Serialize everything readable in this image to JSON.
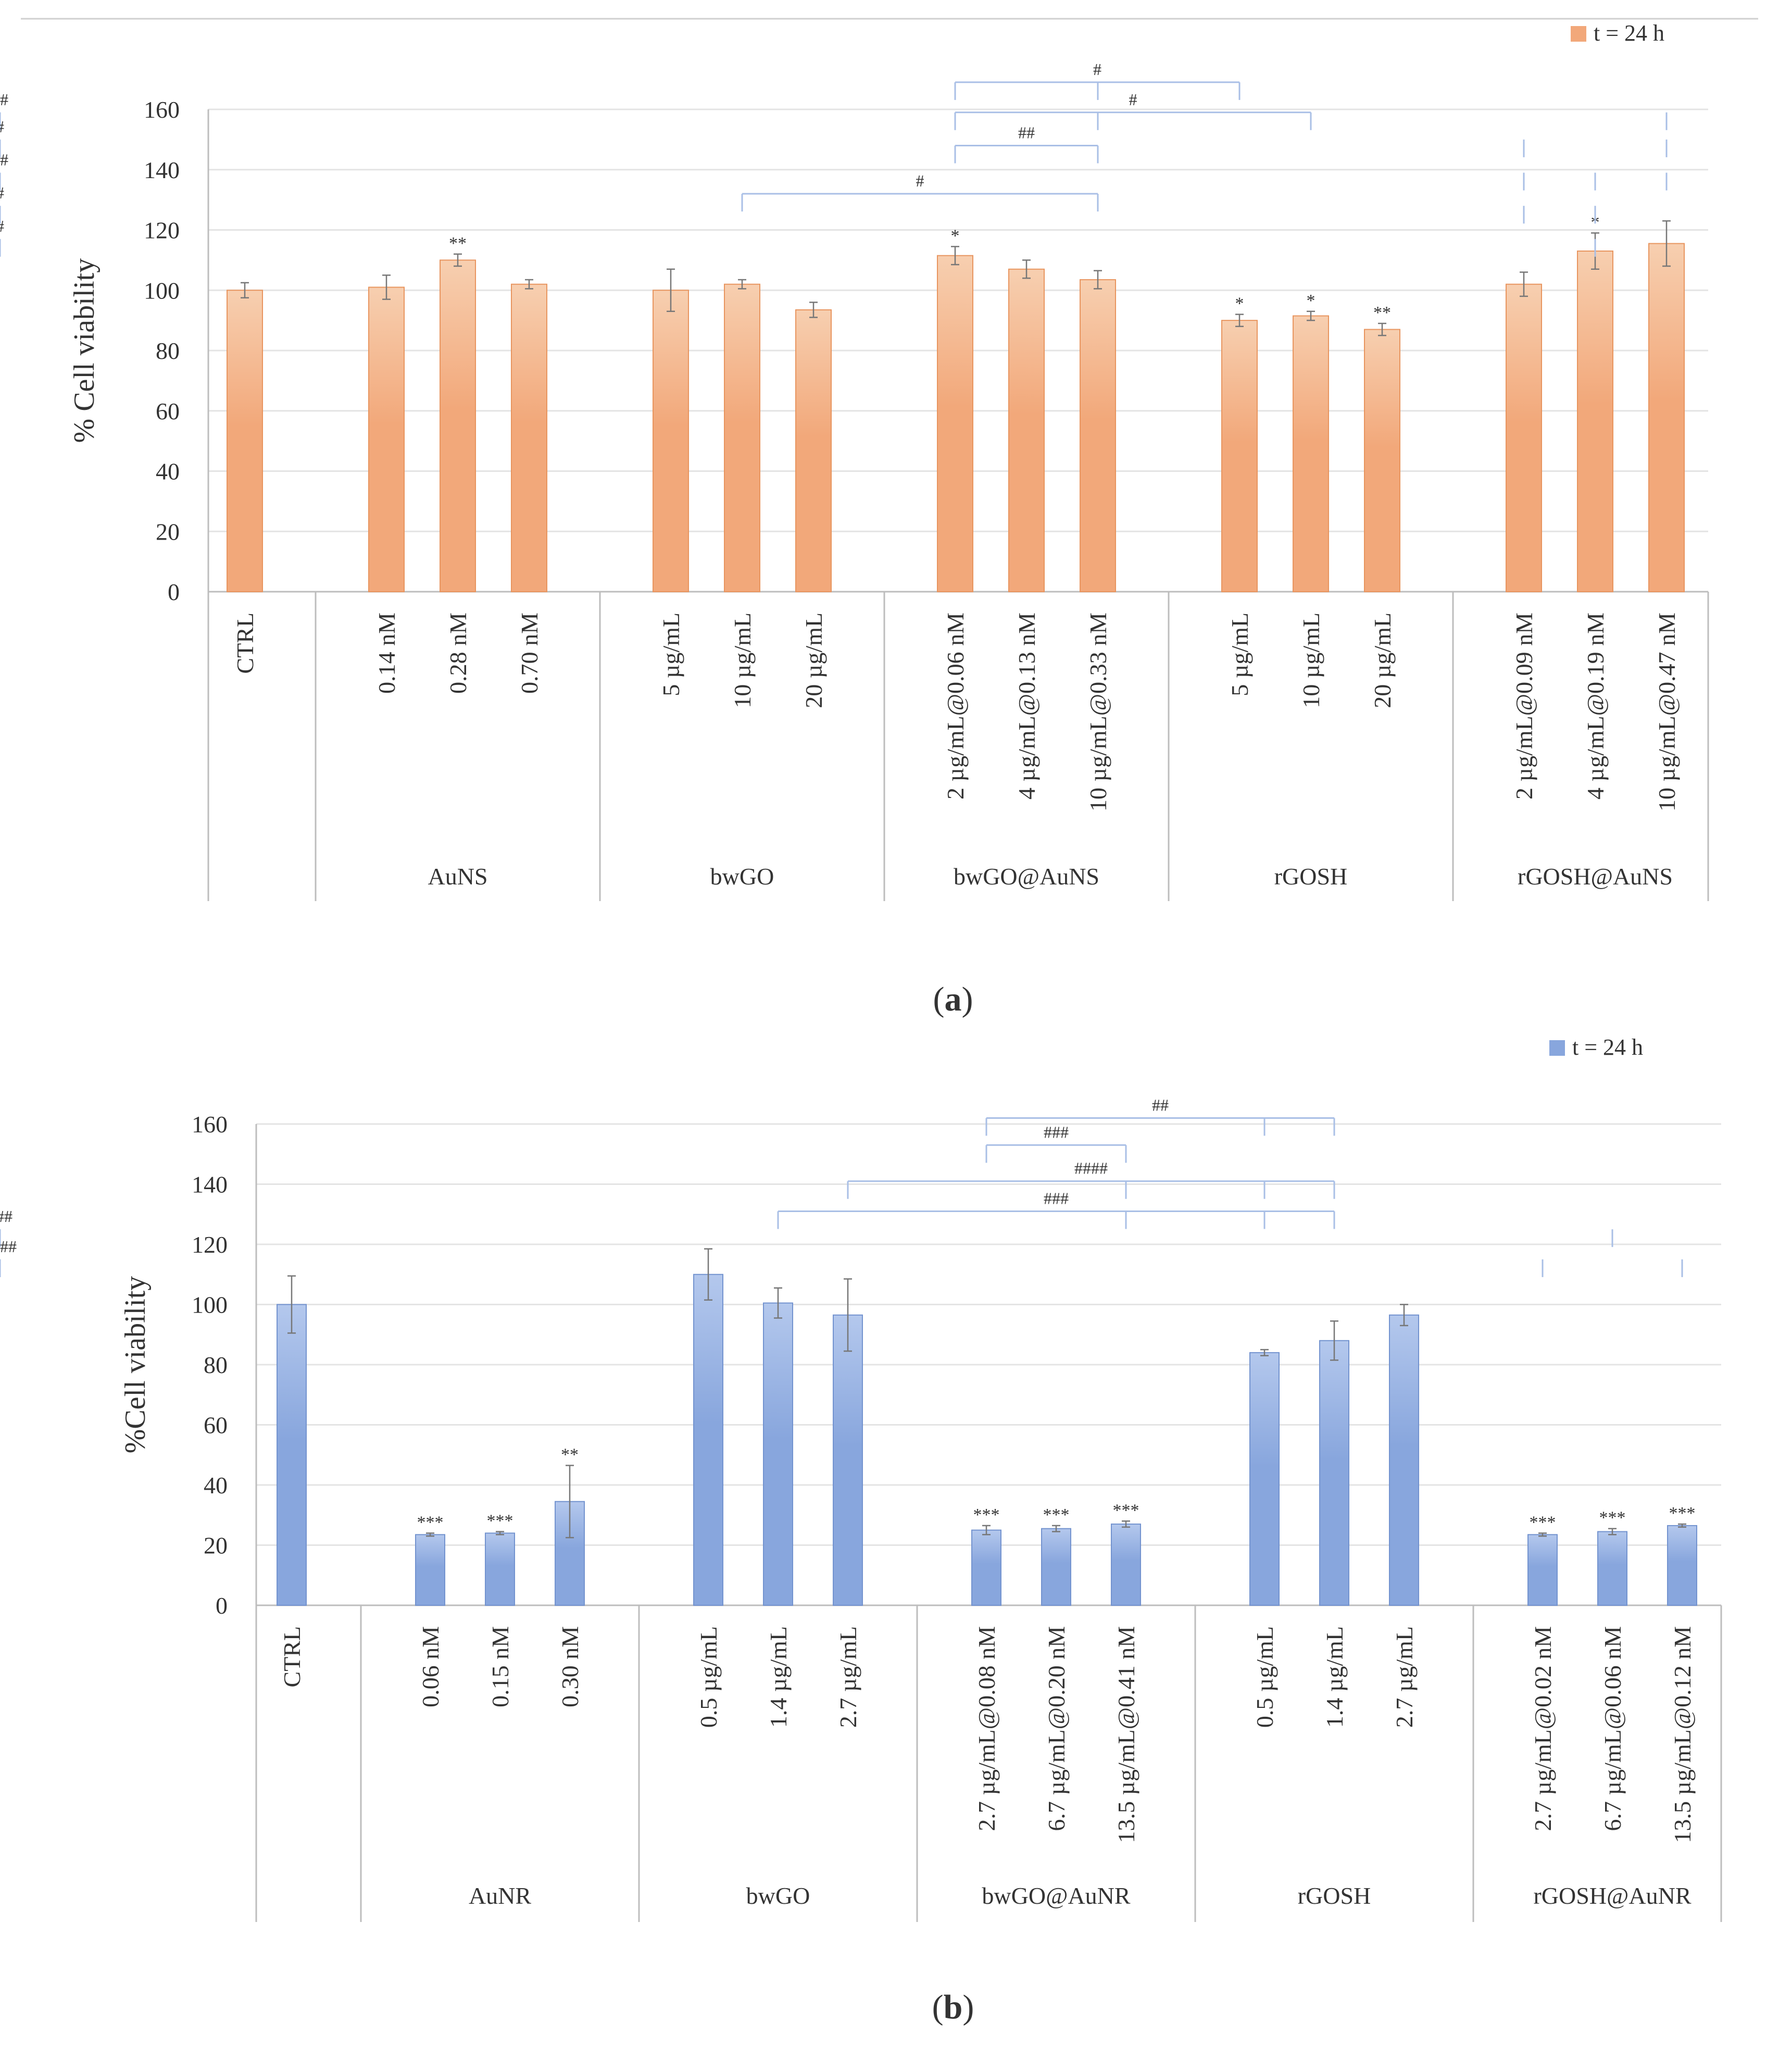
{
  "chart_data": [
    {
      "id": "a",
      "type": "bar",
      "panel_label": "a",
      "legend": "t = 24 h",
      "ylabel": "% Cell  viability",
      "ylim": [
        0,
        160
      ],
      "yticks": [
        0,
        20,
        40,
        60,
        80,
        100,
        120,
        140,
        160
      ],
      "color": "#f2a87a",
      "color_light": "#f7cfb0",
      "groups": [
        {
          "name": "",
          "bars": [
            {
              "label": "CTRL",
              "value": 100,
              "err": 2.5,
              "sig": ""
            }
          ]
        },
        {
          "name": "AuNS",
          "bars": [
            {
              "label": "0.14 nM",
              "value": 101,
              "err": 4,
              "sig": ""
            },
            {
              "label": "0.28 nM",
              "value": 110,
              "err": 2,
              "sig": "**"
            },
            {
              "label": "0.70 nM",
              "value": 102,
              "err": 1.5,
              "sig": ""
            }
          ]
        },
        {
          "name": "bwGO",
          "bars": [
            {
              "label": "5 µg/mL",
              "value": 100,
              "err": 7,
              "sig": ""
            },
            {
              "label": "10 µg/mL",
              "value": 102,
              "err": 1.5,
              "sig": ""
            },
            {
              "label": "20 µg/mL",
              "value": 93.5,
              "err": 2.5,
              "sig": ""
            }
          ]
        },
        {
          "name": "bwGO@AuNS",
          "bars": [
            {
              "label": "2 µg/mL@0.06 nM",
              "value": 111.5,
              "err": 3,
              "sig": "*"
            },
            {
              "label": "4 µg/mL@0.13 nM",
              "value": 107,
              "err": 3,
              "sig": ""
            },
            {
              "label": "10 µg/mL@0.33 nM",
              "value": 103.5,
              "err": 3,
              "sig": ""
            }
          ]
        },
        {
          "name": "rGOSH",
          "bars": [
            {
              "label": "5 µg/mL",
              "value": 90,
              "err": 2,
              "sig": "*"
            },
            {
              "label": "10 µg/mL",
              "value": 91.5,
              "err": 1.5,
              "sig": "*"
            },
            {
              "label": "20 µg/mL",
              "value": 87,
              "err": 2,
              "sig": "**"
            }
          ]
        },
        {
          "name": "rGOSH@AuNS",
          "bars": [
            {
              "label": "2 µg/mL@0.09 nM",
              "value": 102,
              "err": 4,
              "sig": ""
            },
            {
              "label": "4 µg/mL@0.19 nM",
              "value": 113,
              "err": 6,
              "sig": "*"
            },
            {
              "label": "10 µg/mL@0.47 nM",
              "value": 115.5,
              "err": 7.5,
              "sig": ""
            }
          ]
        }
      ],
      "brackets": [
        {
          "label": "#",
          "level": 169,
          "from": 7,
          "to": [
            9,
            10
          ]
        },
        {
          "label": "#",
          "level": 159,
          "from": 7,
          "to": [
            9,
            11
          ]
        },
        {
          "label": "##",
          "level": 148,
          "from": 7,
          "to": [
            9
          ]
        },
        {
          "label": "#",
          "level": 132,
          "from": 5,
          "to": [
            9
          ]
        },
        {
          "label": "##",
          "level": 159,
          "from": 15,
          "to": [
            17,
            18
          ]
        },
        {
          "label": "#",
          "level": 150,
          "from": 13,
          "to": [
            15,
            19
          ]
        },
        {
          "label": "##",
          "level": 139,
          "from": 13,
          "to": [
            14,
            15,
            18
          ]
        },
        {
          "label": "#",
          "level": 128,
          "from": 13,
          "to": [
            14,
            16
          ]
        },
        {
          "label": "#",
          "level": 117,
          "from": 14,
          "to": [
            16
          ]
        }
      ]
    },
    {
      "id": "b",
      "type": "bar",
      "panel_label": "b",
      "legend": "t = 24 h",
      "ylabel": "%Cell viability",
      "ylim": [
        0,
        160
      ],
      "yticks": [
        0,
        20,
        40,
        60,
        80,
        100,
        120,
        140,
        160
      ],
      "color": "#88a6dd",
      "color_light": "#b4c8ed",
      "groups": [
        {
          "name": "",
          "bars": [
            {
              "label": "CTRL",
              "value": 100,
              "err": 9.5,
              "sig": ""
            }
          ]
        },
        {
          "name": "AuNR",
          "bars": [
            {
              "label": "0.06 nM",
              "value": 23.5,
              "err": 0.5,
              "sig": "***"
            },
            {
              "label": "0.15 nM",
              "value": 24,
              "err": 0.5,
              "sig": "***"
            },
            {
              "label": "0.30 nM",
              "value": 34.5,
              "err": 12,
              "sig": "**"
            }
          ]
        },
        {
          "name": "bwGO",
          "bars": [
            {
              "label": "0.5 µg/mL",
              "value": 110,
              "err": 8.5,
              "sig": ""
            },
            {
              "label": "1.4 µg/mL",
              "value": 100.5,
              "err": 5,
              "sig": ""
            },
            {
              "label": "2.7 µg/mL",
              "value": 96.5,
              "err": 12,
              "sig": ""
            }
          ]
        },
        {
          "name": "bwGO@AuNR",
          "bars": [
            {
              "label": "2.7 µg/mL@0.08 nM",
              "value": 25,
              "err": 1.5,
              "sig": "***"
            },
            {
              "label": "6.7 µg/mL@0.20 nM",
              "value": 25.5,
              "err": 1,
              "sig": "***"
            },
            {
              "label": "13.5 µg/mL@0.41 nM",
              "value": 27,
              "err": 1,
              "sig": "***"
            }
          ]
        },
        {
          "name": "rGOSH",
          "bars": [
            {
              "label": "0.5 µg/mL",
              "value": 84,
              "err": 1,
              "sig": ""
            },
            {
              "label": "1.4 µg/mL",
              "value": 88,
              "err": 6.5,
              "sig": ""
            },
            {
              "label": "2.7 µg/mL",
              "value": 96.5,
              "err": 3.5,
              "sig": ""
            }
          ]
        },
        {
          "name": "rGOSH@AuNR",
          "bars": [
            {
              "label": "2.7 µg/mL@0.02 nM",
              "value": 23.5,
              "err": 0.5,
              "sig": "***"
            },
            {
              "label": "6.7 µg/mL@0.06 nM",
              "value": 24.5,
              "err": 1,
              "sig": "***"
            },
            {
              "label": "13.5 µg/mL@0.12 nM",
              "value": 26.5,
              "err": 0.5,
              "sig": "***"
            }
          ]
        }
      ],
      "brackets": [
        {
          "label": "##",
          "level": 162,
          "from": 7,
          "to": [
            10,
            11
          ]
        },
        {
          "label": "###",
          "level": 153,
          "from": 7,
          "to": [
            9
          ]
        },
        {
          "label": "####",
          "level": 141,
          "from": 6,
          "to": [
            9,
            10,
            11
          ]
        },
        {
          "label": "###",
          "level": 131,
          "from": 5,
          "to": [
            9,
            10,
            11
          ]
        },
        {
          "label": "###",
          "level": 125,
          "from": 14,
          "to": [
            17,
            18,
            19
          ]
        },
        {
          "label": "####",
          "level": 115,
          "from": 13,
          "to": [
            15,
            17,
            18,
            19
          ]
        }
      ]
    }
  ]
}
